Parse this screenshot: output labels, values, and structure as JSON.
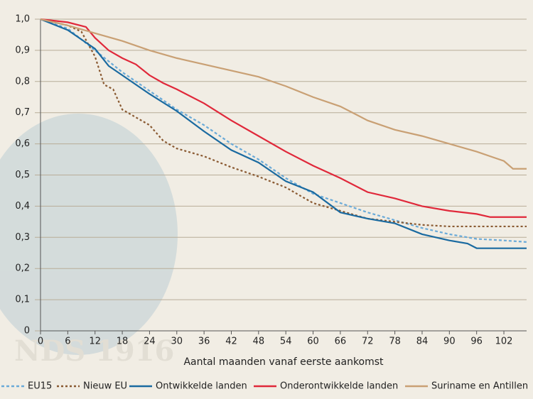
{
  "chart_data": {
    "type": "line",
    "x_label": "Aantal maanden vanaf eerste aankomst",
    "watermark": "NDS 1916",
    "xlim": [
      0,
      107
    ],
    "ylim": [
      0,
      1
    ],
    "xticks": [
      0,
      6,
      12,
      18,
      24,
      30,
      36,
      42,
      48,
      54,
      60,
      66,
      72,
      78,
      84,
      90,
      96,
      102
    ],
    "yticks": [
      0,
      {
        "value": 0.1,
        "label": "0,1"
      },
      {
        "value": 0.2,
        "label": "0,2"
      },
      {
        "value": 0.3,
        "label": "0,3"
      },
      {
        "value": 0.4,
        "label": "0,4"
      },
      {
        "value": 0.5,
        "label": "0,5"
      },
      {
        "value": 0.6,
        "label": "0,6"
      },
      {
        "value": 0.7,
        "label": "0,7"
      },
      {
        "value": 0.8,
        "label": "0,8"
      },
      {
        "value": 0.9,
        "label": "0,9"
      },
      {
        "value": 1,
        "label": "1,0"
      }
    ],
    "grid": true,
    "legend": "bottom",
    "series": [
      {
        "name": "EU15",
        "color": "#6aaad8",
        "dash": "4,3",
        "x": [
          0,
          6,
          12,
          18,
          24,
          30,
          36,
          42,
          48,
          54,
          60,
          66,
          72,
          78,
          84,
          90,
          96,
          102,
          107
        ],
        "values": [
          1.0,
          0.97,
          0.9,
          0.83,
          0.77,
          0.71,
          0.66,
          0.6,
          0.55,
          0.49,
          0.44,
          0.41,
          0.38,
          0.355,
          0.33,
          0.31,
          0.295,
          0.29,
          0.285
        ]
      },
      {
        "name": "Nieuw EU",
        "color": "#8a5a32",
        "dash": "3,3",
        "x": [
          0,
          6,
          9,
          12,
          14,
          16,
          18,
          24,
          27,
          30,
          36,
          42,
          48,
          54,
          60,
          66,
          72,
          78,
          84,
          90,
          96,
          107
        ],
        "values": [
          1.0,
          0.98,
          0.96,
          0.88,
          0.79,
          0.775,
          0.71,
          0.66,
          0.61,
          0.585,
          0.56,
          0.525,
          0.495,
          0.46,
          0.41,
          0.385,
          0.36,
          0.35,
          0.34,
          0.335,
          0.335,
          0.335
        ]
      },
      {
        "name": "Ontwikkelde landen",
        "color": "#1a6aa0",
        "dash": "",
        "x": [
          0,
          6,
          12,
          15,
          18,
          24,
          30,
          36,
          42,
          48,
          54,
          60,
          66,
          72,
          78,
          84,
          90,
          94,
          96,
          107
        ],
        "values": [
          1.0,
          0.965,
          0.905,
          0.85,
          0.82,
          0.76,
          0.705,
          0.64,
          0.58,
          0.54,
          0.48,
          0.445,
          0.38,
          0.36,
          0.345,
          0.31,
          0.29,
          0.28,
          0.265,
          0.265
        ]
      },
      {
        "name": "Onderontwikkelde landen",
        "color": "#e0283a",
        "dash": "",
        "x": [
          0,
          6,
          10,
          12,
          15,
          18,
          21,
          24,
          27,
          30,
          36,
          42,
          48,
          54,
          60,
          66,
          72,
          78,
          84,
          90,
          96,
          99,
          107
        ],
        "values": [
          1.0,
          0.99,
          0.975,
          0.94,
          0.9,
          0.875,
          0.855,
          0.82,
          0.795,
          0.775,
          0.73,
          0.675,
          0.625,
          0.575,
          0.53,
          0.49,
          0.445,
          0.425,
          0.4,
          0.385,
          0.375,
          0.365,
          0.365
        ]
      },
      {
        "name": "Suriname en Antillen",
        "color": "#c9a074",
        "dash": "",
        "x": [
          0,
          6,
          12,
          18,
          24,
          30,
          36,
          42,
          48,
          54,
          60,
          66,
          72,
          78,
          84,
          90,
          96,
          100,
          102,
          104,
          107
        ],
        "values": [
          1.0,
          0.98,
          0.955,
          0.93,
          0.9,
          0.875,
          0.855,
          0.835,
          0.815,
          0.785,
          0.75,
          0.72,
          0.675,
          0.645,
          0.625,
          0.6,
          0.575,
          0.555,
          0.545,
          0.52,
          0.52
        ]
      }
    ]
  }
}
